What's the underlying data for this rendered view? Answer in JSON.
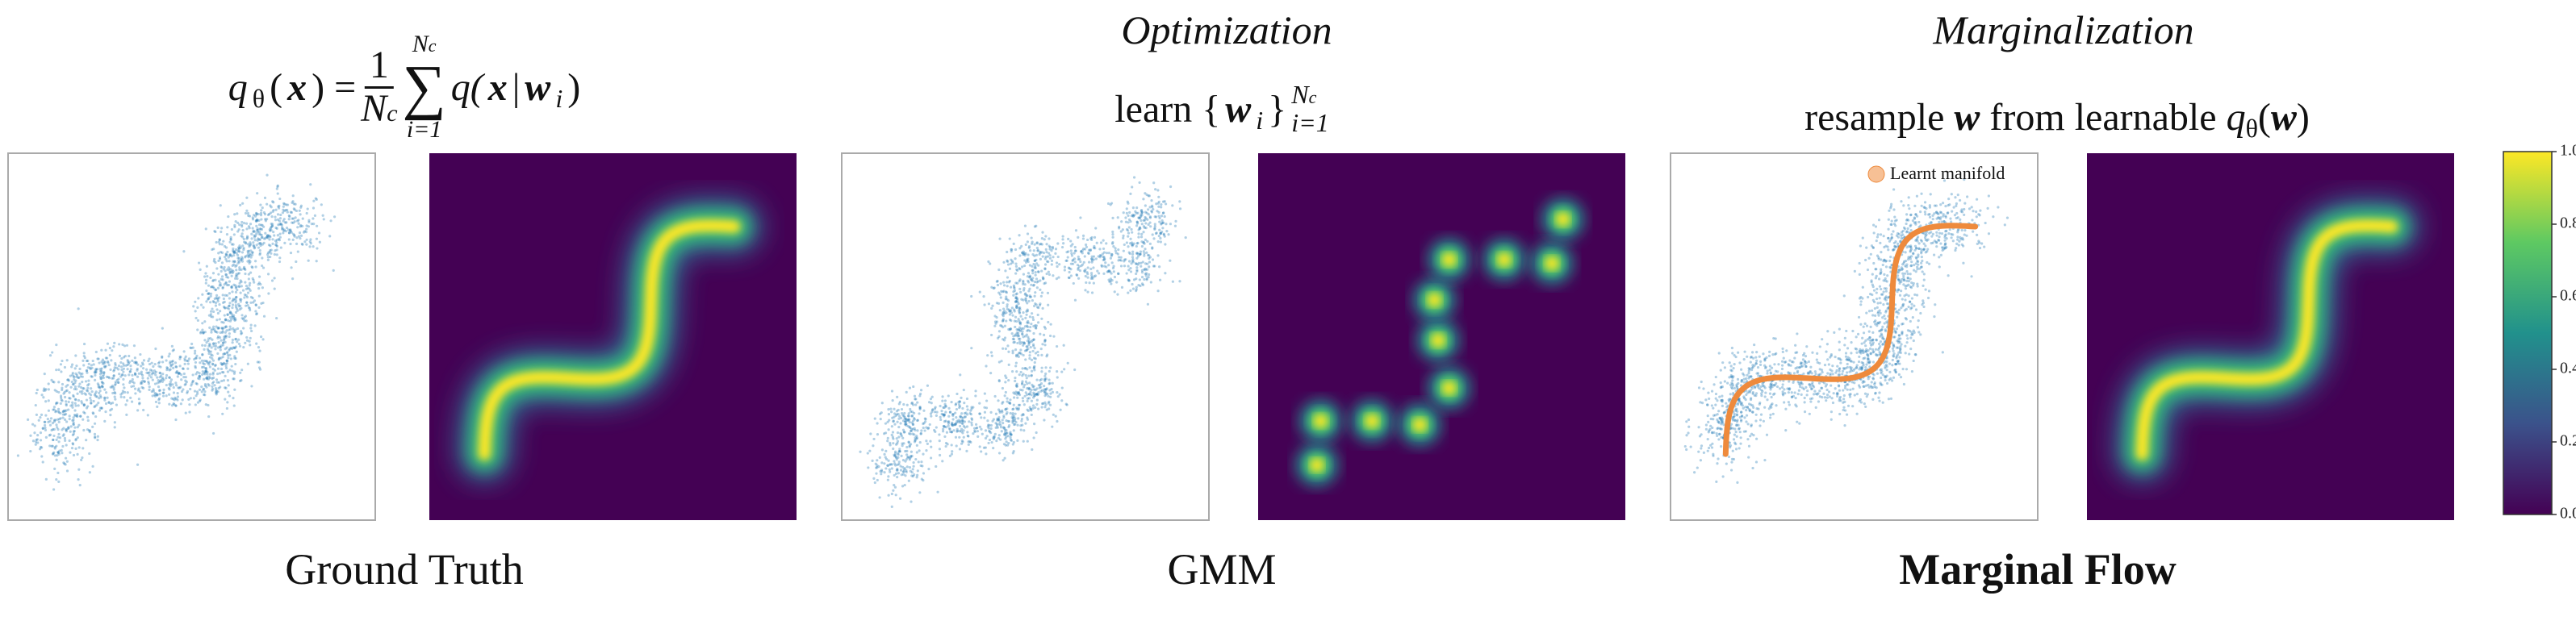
{
  "headers": {
    "optimization": "Optimization",
    "marginalization": "Marginalization"
  },
  "formulas": {
    "ground_truth": [
      "q",
      "θ",
      "(",
      "x",
      ") =",
      "1",
      "N",
      "c",
      "N",
      "c",
      "∑",
      "i=1",
      "q(",
      "x",
      "|",
      "w",
      "i",
      ")"
    ],
    "learn": [
      "learn {",
      "w",
      "i",
      "}",
      "N",
      "c",
      "i=1"
    ],
    "resample": [
      "resample",
      "w",
      "from learnable",
      "q",
      "θ",
      "(",
      "w",
      ")"
    ]
  },
  "legend": "Learnt manifold",
  "colorbar": {
    "lim": [
      0,
      1
    ],
    "ticks": [
      {
        "value": 0,
        "label": "0.0"
      },
      {
        "value": 0.2,
        "label": "0.2"
      },
      {
        "value": 0.4,
        "label": "0.4"
      },
      {
        "value": 0.6,
        "label": "0.6"
      },
      {
        "value": 0.8,
        "label": "0.8"
      },
      {
        "value": 1,
        "label": "1.0"
      }
    ]
  },
  "captions": [
    "Ground Truth",
    "GMM",
    "Marginal Flow"
  ]
}
